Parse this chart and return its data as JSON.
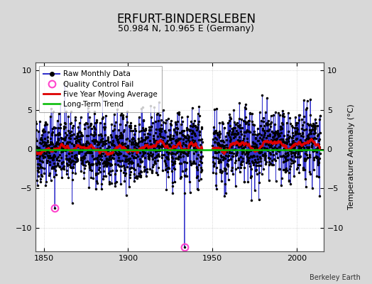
{
  "title": "ERFURT-BINDERSLEBEN",
  "subtitle": "50.984 N, 10.965 E (Germany)",
  "ylabel": "Temperature Anomaly (°C)",
  "watermark": "Berkeley Earth",
  "xlim": [
    1845,
    2016
  ],
  "ylim": [
    -13,
    11
  ],
  "yticks": [
    -10,
    -5,
    0,
    5,
    10
  ],
  "xticks": [
    1850,
    1900,
    1950,
    2000
  ],
  "start_year": 1845,
  "end_year": 2014,
  "seed": 42,
  "gap_start": 1944,
  "gap_end": 1950,
  "qc_fail_1_year": 1856.5,
  "qc_fail_1_val": -7.5,
  "qc_fail_2_year": 1933.5,
  "qc_fail_2_val": -12.5,
  "bg_color": "#d8d8d8",
  "plot_bg_color": "#ffffff",
  "line_color": "#3333cc",
  "dot_color": "#000000",
  "ma_color": "#dd0000",
  "trend_color": "#00bb00",
  "qc_color": "#ff44cc",
  "grid_color": "#bbbbbb",
  "title_fontsize": 12,
  "subtitle_fontsize": 9,
  "label_fontsize": 8,
  "tick_fontsize": 8,
  "legend_fontsize": 7.5
}
